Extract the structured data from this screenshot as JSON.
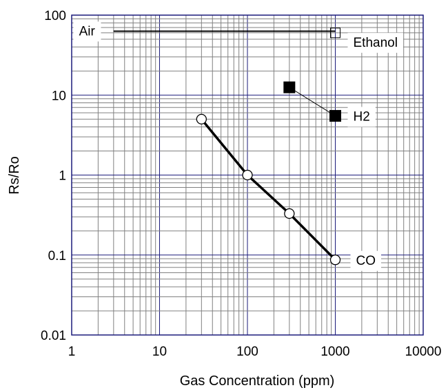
{
  "chart_data": {
    "type": "scatter",
    "title": "",
    "xlabel": "Gas Concentration (ppm)",
    "ylabel": "Rs/Ro",
    "xscale": "log",
    "yscale": "log",
    "xlim": [
      1,
      10000
    ],
    "ylim": [
      0.01,
      100
    ],
    "grid": true,
    "grid_color": "#808080",
    "frame_color": "#1a1a7a",
    "x_ticks": [
      {
        "value": 1,
        "label": "1"
      },
      {
        "value": 10,
        "label": "10"
      },
      {
        "value": 100,
        "label": "100"
      },
      {
        "value": 1000,
        "label": "1000"
      },
      {
        "value": 10000,
        "label": "10000"
      }
    ],
    "y_ticks": [
      {
        "value": 0.01,
        "label": "0.01"
      },
      {
        "value": 0.1,
        "label": "0.1"
      },
      {
        "value": 1,
        "label": "1"
      },
      {
        "value": 10,
        "label": "10"
      },
      {
        "value": 100,
        "label": "100"
      }
    ],
    "series": [
      {
        "name": "Ethanol",
        "marker": "open-square",
        "line": "none",
        "x": [
          1000
        ],
        "y": [
          60
        ]
      },
      {
        "name": "H2",
        "marker": "filled-square",
        "line": "thin",
        "x": [
          300,
          1000
        ],
        "y": [
          12.5,
          5.5
        ]
      },
      {
        "name": "CO",
        "marker": "open-circle",
        "line": "thick",
        "x": [
          30,
          100,
          300,
          1000
        ],
        "y": [
          5,
          1,
          0.33,
          0.087
        ]
      }
    ],
    "reference_lines": [
      {
        "name": "Air",
        "y": 63,
        "x_from": 3,
        "x_to": 1000
      }
    ]
  }
}
